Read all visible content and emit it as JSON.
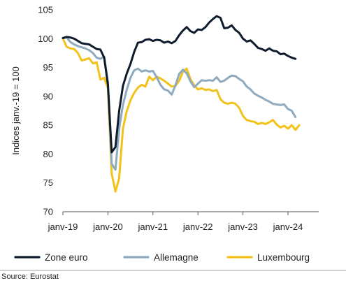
{
  "chart_data": {
    "type": "line",
    "ylabel": "Indices janv.-19 = 100",
    "ylim": [
      70,
      105
    ],
    "yticks": [
      70,
      75,
      80,
      85,
      90,
      95,
      100,
      105
    ],
    "xticks": [
      "janv-19",
      "janv-20",
      "janv-21",
      "janv-22",
      "janv-23",
      "janv-24"
    ],
    "x_months": [
      0,
      1,
      2,
      3,
      4,
      5,
      6,
      7,
      8,
      9,
      10,
      11,
      12,
      13,
      14,
      15,
      16,
      17,
      18,
      19,
      20,
      21,
      22,
      23,
      24,
      25,
      26,
      27,
      28,
      29,
      30,
      31,
      32,
      33,
      34,
      35,
      36,
      37,
      38,
      39,
      40,
      41,
      42,
      43,
      44,
      45,
      46,
      47,
      48,
      49,
      50,
      51,
      52,
      53,
      54,
      55,
      56,
      57,
      58,
      59,
      60,
      61,
      62,
      63,
      64,
      65,
      66,
      67,
      68
    ],
    "x_months_note": "month index from janv-19 = 0 (Luxembourg has one extra point)",
    "grid": false,
    "legend_position": "bottom",
    "series": [
      {
        "name": "Zone euro",
        "color": "#0f1c2e",
        "width": 3,
        "values": [
          100.1,
          100.3,
          100.2,
          100.0,
          99.6,
          99.2,
          99.1,
          99.0,
          98.6,
          98.2,
          98.1,
          96.7,
          92.0,
          80.3,
          81.2,
          87.5,
          91.8,
          93.9,
          95.6,
          97.7,
          99.3,
          99.4,
          99.8,
          99.9,
          99.6,
          99.8,
          99.7,
          99.3,
          99.5,
          99.2,
          99.6,
          100.6,
          101.4,
          102.0,
          101.3,
          101.0,
          101.6,
          101.5,
          102.0,
          102.8,
          103.4,
          103.9,
          103.6,
          101.8,
          101.9,
          102.3,
          101.5,
          101.0,
          100.0,
          99.5,
          99.7,
          99.1,
          98.4,
          98.2,
          97.9,
          98.3,
          97.9,
          97.8,
          97.3,
          97.4,
          97.0,
          96.7,
          96.5
        ]
      },
      {
        "name": "Allemagne",
        "color": "#8eaabf",
        "width": 3,
        "values": [
          100.1,
          100.2,
          99.4,
          99.0,
          98.7,
          98.5,
          98.3,
          98.0,
          97.5,
          96.7,
          96.5,
          96.9,
          92.5,
          78.3,
          77.3,
          84.4,
          88.5,
          91.1,
          93.2,
          94.5,
          94.8,
          94.3,
          94.5,
          94.3,
          94.4,
          93.3,
          92.0,
          91.2,
          91.0,
          90.3,
          91.9,
          93.9,
          94.6,
          94.0,
          92.6,
          91.6,
          92.2,
          92.8,
          92.7,
          92.8,
          92.7,
          93.3,
          92.5,
          92.7,
          93.2,
          93.6,
          93.5,
          93.0,
          92.6,
          91.7,
          91.2,
          90.5,
          90.1,
          89.8,
          89.4,
          89.1,
          88.7,
          88.6,
          88.5,
          88.6,
          87.8,
          87.5,
          86.4
        ]
      },
      {
        "name": "Luxembourg",
        "color": "#f2c21a",
        "width": 3,
        "values": [
          100.0,
          98.6,
          98.3,
          98.2,
          97.5,
          96.2,
          96.4,
          96.6,
          95.7,
          95.9,
          92.9,
          93.2,
          91.4,
          76.6,
          73.5,
          75.8,
          84.4,
          87.4,
          89.3,
          90.6,
          91.5,
          92.0,
          91.7,
          93.4,
          92.8,
          93.4,
          93.1,
          92.7,
          92.2,
          91.7,
          91.8,
          92.7,
          94.3,
          94.8,
          93.0,
          91.9,
          91.2,
          91.4,
          91.1,
          91.2,
          90.9,
          91.1,
          89.5,
          88.9,
          88.7,
          88.9,
          88.7,
          88.0,
          86.6,
          85.9,
          85.7,
          85.6,
          85.2,
          85.4,
          85.2,
          85.5,
          85.9,
          85.1,
          84.6,
          84.9,
          84.4,
          85.0,
          84.2,
          85.0
        ]
      }
    ],
    "source": "Source: Eurostat"
  },
  "colors": {
    "text": "#1f1f1f",
    "axis": "#555555",
    "divider": "#7f7f7f"
  }
}
